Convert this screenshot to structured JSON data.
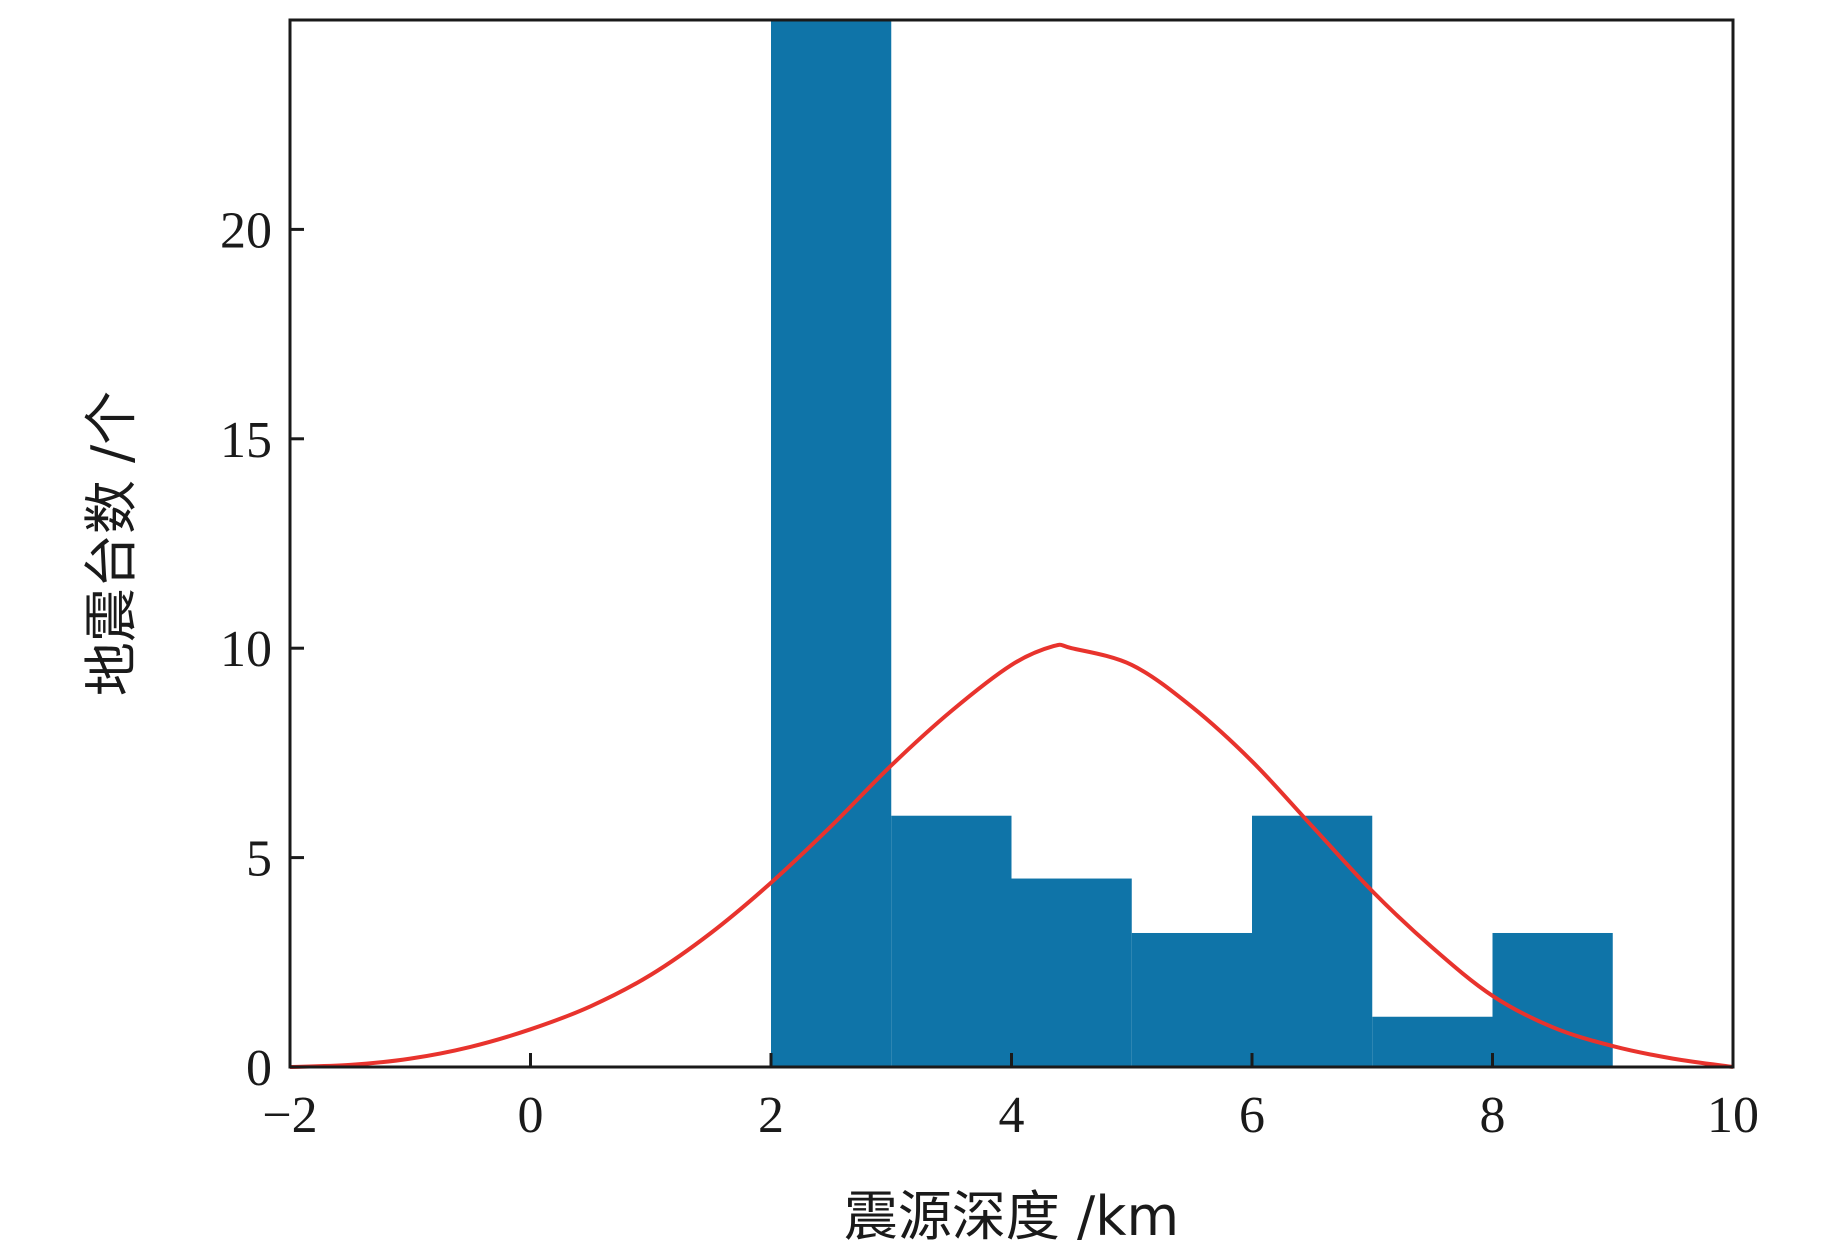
{
  "chart_data": {
    "type": "bar",
    "title": "",
    "xlabel": "震源深度 /km",
    "ylabel": "地震台数 /个",
    "xlim": [
      -2,
      10
    ],
    "ylim": [
      0,
      25
    ],
    "xticks": [
      -2,
      0,
      2,
      4,
      6,
      8,
      10
    ],
    "yticks": [
      0,
      5,
      10,
      15,
      20
    ],
    "xtick_labels": [
      "−2",
      "0",
      "2",
      "4",
      "6",
      "8",
      "10"
    ],
    "ytick_labels": [
      "0",
      "5",
      "10",
      "15",
      "20"
    ],
    "grid": false,
    "legend": "none",
    "series": [
      {
        "type": "histogram",
        "color": "#0f74a8",
        "bins": [
          {
            "x0": 2,
            "x1": 3,
            "value": 25
          },
          {
            "x0": 3,
            "x1": 4,
            "value": 6
          },
          {
            "x0": 4,
            "x1": 5,
            "value": 4.5
          },
          {
            "x0": 5,
            "x1": 6,
            "value": 3.2
          },
          {
            "x0": 6,
            "x1": 7,
            "value": 6
          },
          {
            "x0": 7,
            "x1": 8,
            "value": 1.2
          },
          {
            "x0": 8,
            "x1": 9,
            "value": 3.2
          }
        ]
      },
      {
        "type": "line",
        "color": "#e8332d",
        "description_points": "normal curve",
        "points": [
          [
            -2,
            0
          ],
          [
            -1.5,
            0.05
          ],
          [
            -1,
            0.2
          ],
          [
            -0.5,
            0.48
          ],
          [
            0,
            0.9
          ],
          [
            0.5,
            1.45
          ],
          [
            1,
            2.2
          ],
          [
            1.5,
            3.2
          ],
          [
            2,
            4.4
          ],
          [
            2.5,
            5.75
          ],
          [
            3,
            7.2
          ],
          [
            3.5,
            8.5
          ],
          [
            4,
            9.6
          ],
          [
            4.35,
            10.05
          ],
          [
            4.5,
            10.0
          ],
          [
            5,
            9.6
          ],
          [
            5.5,
            8.6
          ],
          [
            6,
            7.3
          ],
          [
            6.5,
            5.75
          ],
          [
            7,
            4.2
          ],
          [
            7.5,
            2.85
          ],
          [
            8,
            1.7
          ],
          [
            8.5,
            0.95
          ],
          [
            9,
            0.5
          ],
          [
            9.5,
            0.2
          ],
          [
            10,
            0
          ]
        ]
      }
    ]
  }
}
